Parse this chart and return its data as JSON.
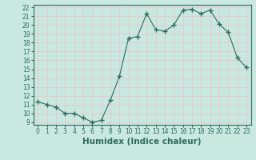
{
  "x": [
    0,
    1,
    2,
    3,
    4,
    5,
    6,
    7,
    8,
    9,
    10,
    11,
    12,
    13,
    14,
    15,
    16,
    17,
    18,
    19,
    20,
    21,
    22,
    23
  ],
  "y": [
    11.3,
    11.0,
    10.7,
    10.0,
    10.0,
    9.5,
    9.0,
    9.2,
    11.5,
    14.2,
    18.5,
    18.7,
    21.3,
    19.5,
    19.3,
    20.0,
    21.7,
    21.8,
    21.3,
    21.7,
    20.1,
    19.2,
    16.3,
    15.2
  ],
  "line_color": "#2e6b5e",
  "marker": "+",
  "marker_size": 4,
  "bg_color": "#c8e8e0",
  "grid_color": "#e8c8c8",
  "xlabel": "Humidex (Indice chaleur)",
  "ylim": [
    9,
    22
  ],
  "xlim": [
    -0.5,
    23.5
  ],
  "yticks": [
    9,
    10,
    11,
    12,
    13,
    14,
    15,
    16,
    17,
    18,
    19,
    20,
    21,
    22
  ],
  "xticks": [
    0,
    1,
    2,
    3,
    4,
    5,
    6,
    7,
    8,
    9,
    10,
    11,
    12,
    13,
    14,
    15,
    16,
    17,
    18,
    19,
    20,
    21,
    22,
    23
  ],
  "tick_color": "#2e6b5e",
  "label_fontsize": 5.5,
  "xlabel_fontsize": 7.5
}
